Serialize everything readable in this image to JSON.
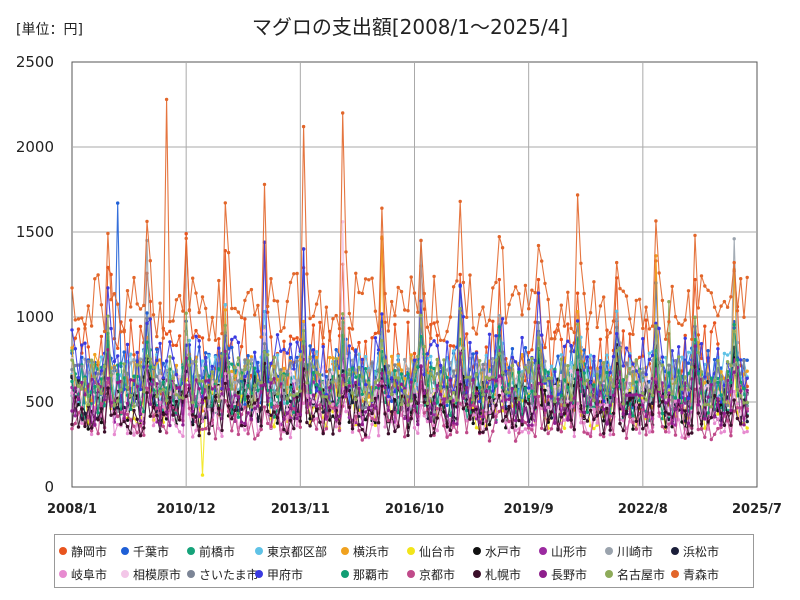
{
  "chart_data": {
    "type": "line",
    "title": "マグロの支出額[2008/1～2025/4]",
    "unit_label": "[単位：円]",
    "x_ticks": [
      "2008/1",
      "2010/12",
      "2013/11",
      "2016/10",
      "2019/9",
      "2022/8",
      "2025/7"
    ],
    "y_ticks": [
      "0",
      "500",
      "1000",
      "1500",
      "2000",
      "2500"
    ],
    "ylim": [
      0,
      2500
    ],
    "x_range": [
      "2008/1",
      "2025/7"
    ],
    "grid": true,
    "legend_position": "bottom",
    "series": [
      {
        "name": "静岡市",
        "color": "#e8541e",
        "base": 760,
        "amp": 230,
        "seed": 1,
        "peaks": [
          {
            "x": "2009/1",
            "y": 1250
          },
          {
            "x": "2010/12",
            "y": 1490
          },
          {
            "x": "2011/12",
            "y": 1390
          },
          {
            "x": "2012/12",
            "y": 1440
          },
          {
            "x": "2013/12",
            "y": 1290
          },
          {
            "x": "2014/12",
            "y": 1310
          },
          {
            "x": "2015/12",
            "y": 1460
          },
          {
            "x": "2016/12",
            "y": 1300
          },
          {
            "x": "2017/12",
            "y": 1250
          },
          {
            "x": "2018/12",
            "y": 1220
          },
          {
            "x": "2019/12",
            "y": 1220
          },
          {
            "x": "2020/12",
            "y": 1140
          },
          {
            "x": "2021/12",
            "y": 1230
          },
          {
            "x": "2022/12",
            "y": 1330
          },
          {
            "x": "2023/12",
            "y": 1220
          },
          {
            "x": "2024/12",
            "y": 1270
          }
        ]
      },
      {
        "name": "千葉市",
        "color": "#1f5fd6",
        "base": 640,
        "amp": 190,
        "seed": 2,
        "peaks": [
          {
            "x": "2009/3",
            "y": 1670
          },
          {
            "x": "2013/12",
            "y": 1400
          },
          {
            "x": "2017/12",
            "y": 1180
          },
          {
            "x": "2022/12",
            "y": 1200
          }
        ]
      },
      {
        "name": "前橋市",
        "color": "#16a37a",
        "base": 560,
        "amp": 170,
        "seed": 3,
        "peaks": []
      },
      {
        "name": "東京都区部",
        "color": "#5fc2e6",
        "base": 640,
        "amp": 160,
        "seed": 4,
        "peaks": []
      },
      {
        "name": "横浜市",
        "color": "#f0a11f",
        "base": 610,
        "amp": 170,
        "seed": 5,
        "peaks": [
          {
            "x": "2015/12",
            "y": 1470
          },
          {
            "x": "2022/12",
            "y": 1360
          },
          {
            "x": "2024/12",
            "y": 1280
          }
        ]
      },
      {
        "name": "仙台市",
        "color": "#f2e51a",
        "base": 470,
        "amp": 130,
        "seed": 6,
        "peaks": [
          {
            "x": "2011/5",
            "y": 70
          }
        ]
      },
      {
        "name": "水戸市",
        "color": "#111111",
        "base": 470,
        "amp": 130,
        "seed": 7,
        "peaks": []
      },
      {
        "name": "山形市",
        "color": "#9b2aa0",
        "base": 500,
        "amp": 140,
        "seed": 8,
        "peaks": []
      },
      {
        "name": "川崎市",
        "color": "#9aa3ad",
        "base": 600,
        "amp": 160,
        "seed": 9,
        "peaks": [
          {
            "x": "2009/12",
            "y": 1450
          },
          {
            "x": "2016/12",
            "y": 1450
          },
          {
            "x": "2024/12",
            "y": 1460
          }
        ]
      },
      {
        "name": "浜松市",
        "color": "#1b1f3a",
        "base": 520,
        "amp": 140,
        "seed": 10,
        "peaks": []
      },
      {
        "name": "岐阜市",
        "color": "#e78bd0",
        "base": 400,
        "amp": 110,
        "seed": 11,
        "peaks": []
      },
      {
        "name": "相模原市",
        "color": "#f3c6e8",
        "base": 560,
        "amp": 150,
        "seed": 12,
        "peaks": [
          {
            "x": "2014/12",
            "y": 1560
          }
        ]
      },
      {
        "name": "さいたま市",
        "color": "#7c8596",
        "base": 600,
        "amp": 150,
        "seed": 13,
        "peaks": []
      },
      {
        "name": "甲府市",
        "color": "#3a3ae0",
        "base": 700,
        "amp": 200,
        "seed": 14,
        "peaks": [
          {
            "x": "2012/12",
            "y": 1440
          },
          {
            "x": "2013/12",
            "y": 1400
          }
        ]
      },
      {
        "name": "那覇市",
        "color": "#119e74",
        "base": 560,
        "amp": 150,
        "seed": 15,
        "peaks": []
      },
      {
        "name": "京都市",
        "color": "#c04a8a",
        "base": 380,
        "amp": 110,
        "seed": 16,
        "peaks": []
      },
      {
        "name": "札幌市",
        "color": "#3b0f2a",
        "base": 420,
        "amp": 120,
        "seed": 17,
        "peaks": []
      },
      {
        "name": "長野市",
        "color": "#8e1f8c",
        "base": 500,
        "amp": 140,
        "seed": 18,
        "peaks": []
      },
      {
        "name": "名古屋市",
        "color": "#8eab5a",
        "base": 620,
        "amp": 150,
        "seed": 19,
        "peaks": [
          {
            "x": "2023/4",
            "y": 1090
          }
        ]
      },
      {
        "name": "青森市",
        "color": "#e2662a",
        "base": 1060,
        "amp": 200,
        "seed": 20,
        "peaks": [
          {
            "x": "2010/6",
            "y": 2280
          },
          {
            "x": "2013/12",
            "y": 2120
          },
          {
            "x": "2014/12",
            "y": 2200
          },
          {
            "x": "2012/12",
            "y": 1780
          },
          {
            "x": "2015/12",
            "y": 1640
          },
          {
            "x": "2017/12",
            "y": 1680
          },
          {
            "x": "2019/12",
            "y": 1420
          },
          {
            "x": "2021/12",
            "y": 1320
          },
          {
            "x": "2023/12",
            "y": 1480
          },
          {
            "x": "2024/12",
            "y": 1320
          }
        ]
      }
    ]
  }
}
